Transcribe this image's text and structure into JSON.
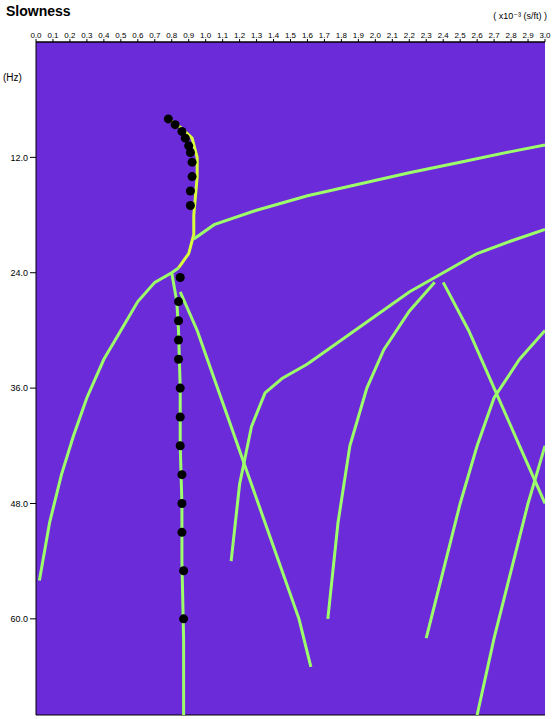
{
  "chart_data": {
    "type": "line",
    "title": "Slowness",
    "x_label": "( x10⁻³ (s/ft) )",
    "y_label": "(Hz)",
    "xlim": [
      0,
      3
    ],
    "ylim": [
      0,
      70
    ],
    "xticks": [
      {
        "value": 0,
        "label": "0.0"
      },
      {
        "value": 0.1,
        "label": "0.1"
      },
      {
        "value": 0.2,
        "label": "0.2"
      },
      {
        "value": 0.3,
        "label": "0.3"
      },
      {
        "value": 0.4,
        "label": "0.4"
      },
      {
        "value": 0.5,
        "label": "0.5"
      },
      {
        "value": 0.6,
        "label": "0.6"
      },
      {
        "value": 0.7,
        "label": "0.7"
      },
      {
        "value": 0.8,
        "label": "0.8"
      },
      {
        "value": 0.9,
        "label": "0.9"
      },
      {
        "value": 1,
        "label": "1.0"
      },
      {
        "value": 1.1,
        "label": "1.1"
      },
      {
        "value": 1.2,
        "label": "1.2"
      },
      {
        "value": 1.3,
        "label": "1.3"
      },
      {
        "value": 1.4,
        "label": "1.4"
      },
      {
        "value": 1.5,
        "label": "1.5"
      },
      {
        "value": 1.6,
        "label": "1.6"
      },
      {
        "value": 1.7,
        "label": "1.7"
      },
      {
        "value": 1.8,
        "label": "1.8"
      },
      {
        "value": 1.9,
        "label": "1.9"
      },
      {
        "value": 2,
        "label": "2.0"
      },
      {
        "value": 2.1,
        "label": "2.1"
      },
      {
        "value": 2.2,
        "label": "2.2"
      },
      {
        "value": 2.3,
        "label": "2.3"
      },
      {
        "value": 2.4,
        "label": "2.4"
      },
      {
        "value": 2.5,
        "label": "2.5"
      },
      {
        "value": 2.6,
        "label": "2.6"
      },
      {
        "value": 2.7,
        "label": "2.7"
      },
      {
        "value": 2.8,
        "label": "2.8"
      },
      {
        "value": 2.9,
        "label": "2.9"
      },
      {
        "value": 3,
        "label": "3.0"
      }
    ],
    "yticks": [
      {
        "value": 12,
        "label": "12.0"
      },
      {
        "value": 24,
        "label": "24.0"
      },
      {
        "value": 36,
        "label": "36.0"
      },
      {
        "value": 48,
        "label": "48.0"
      },
      {
        "value": 60,
        "label": "60.0"
      }
    ],
    "grid": true,
    "series": [
      {
        "color": "#d8ff3c",
        "x": [
          0.78,
          0.86,
          0.92,
          0.95,
          0.95,
          0.94,
          0.93,
          0.93,
          0.9,
          0.84
        ],
        "y": [
          8,
          9,
          10,
          12,
          14,
          16,
          18,
          20,
          22,
          23.5
        ]
      },
      {
        "color": "#9cff6a",
        "x": [
          0.93,
          1.05,
          1.3,
          1.6,
          1.9,
          2.2,
          2.5,
          2.8,
          3.0
        ],
        "y": [
          20.5,
          19,
          17.5,
          16,
          14.8,
          13.6,
          12.5,
          11.4,
          10.7
        ]
      },
      {
        "color": "#9cff6a",
        "x": [
          0.84,
          0.8,
          0.7,
          0.6,
          0.5,
          0.4,
          0.3,
          0.22,
          0.15,
          0.08,
          0.02
        ],
        "y": [
          23.5,
          24,
          25,
          27,
          30,
          33,
          37,
          41,
          45,
          50,
          56
        ]
      },
      {
        "color": "#9cff6a",
        "x": [
          0.8,
          0.83,
          0.84,
          0.85,
          0.85,
          0.86,
          0.86,
          0.87,
          0.87
        ],
        "y": [
          24,
          27,
          30,
          36,
          42,
          48,
          54,
          62,
          70
        ]
      },
      {
        "color": "#9cff6a",
        "x": [
          0.85,
          0.95,
          1.05,
          1.15,
          1.25,
          1.35,
          1.45,
          1.55,
          1.62
        ],
        "y": [
          26,
          30,
          35,
          40,
          45,
          50,
          55,
          60,
          65
        ]
      },
      {
        "color": "#9cff6a",
        "x": [
          3.0,
          2.8,
          2.6,
          2.4,
          2.2,
          2.0,
          1.8,
          1.6,
          1.45,
          1.35,
          1.27,
          1.2,
          1.15
        ],
        "y": [
          19.5,
          20.7,
          22,
          24,
          26,
          28.5,
          31,
          33.5,
          35,
          36.5,
          40,
          46,
          54
        ]
      },
      {
        "color": "#9cff6a",
        "x": [
          2.35,
          2.2,
          2.05,
          1.95,
          1.85,
          1.78,
          1.72
        ],
        "y": [
          25,
          28,
          32,
          36,
          42,
          50,
          60
        ]
      },
      {
        "color": "#9cff6a",
        "x": [
          2.4,
          2.55,
          2.7,
          2.85,
          3.0
        ],
        "y": [
          25,
          30,
          36,
          42,
          48
        ]
      },
      {
        "color": "#9cff6a",
        "x": [
          3.0,
          2.85,
          2.7,
          2.6,
          2.5,
          2.4,
          2.3
        ],
        "y": [
          30,
          33,
          37,
          42,
          48,
          55,
          62
        ]
      },
      {
        "color": "#9cff6a",
        "x": [
          3.0,
          2.9,
          2.8,
          2.7,
          2.6
        ],
        "y": [
          42,
          48,
          55,
          62,
          70
        ]
      },
      {
        "type": "scatter",
        "marker": "circle",
        "color": "#000000",
        "x": [
          0.78,
          0.82,
          0.86,
          0.88,
          0.9,
          0.91,
          0.92,
          0.92,
          0.91,
          0.91,
          0.85,
          0.84,
          0.84,
          0.84,
          0.84,
          0.85,
          0.85,
          0.85,
          0.86,
          0.86,
          0.86,
          0.87,
          0.87
        ],
        "y": [
          8,
          8.6,
          9.3,
          10,
          10.8,
          11.5,
          12.5,
          14,
          15.5,
          17,
          24.5,
          27,
          29,
          31,
          33,
          36,
          39,
          42,
          45,
          48,
          51,
          55,
          60
        ]
      }
    ]
  }
}
